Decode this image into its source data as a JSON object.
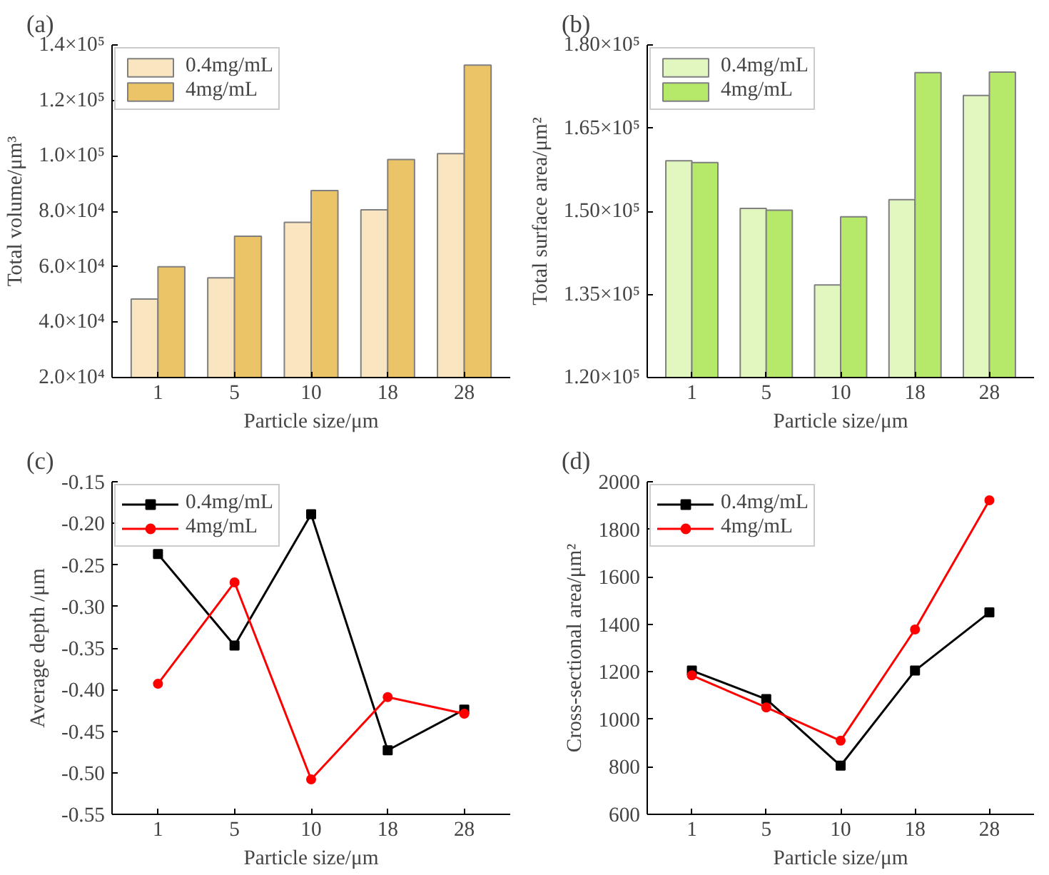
{
  "chart_data": [
    {
      "type": "bar",
      "title": "(a)",
      "xlabel": "Particle size/μm",
      "ylabel": "Total volume/μm³",
      "categories": [
        "1",
        "5",
        "10",
        "18",
        "28"
      ],
      "ylim": [
        20000,
        140000
      ],
      "yticks": [
        {
          "value": 20000,
          "label": "2.0×10⁴"
        },
        {
          "value": 40000,
          "label": "4.0×10⁴"
        },
        {
          "value": 60000,
          "label": "6.0×10⁴"
        },
        {
          "value": 80000,
          "label": "8.0×10⁴"
        },
        {
          "value": 100000,
          "label": "1.0×10⁵"
        },
        {
          "value": 120000,
          "label": "1.2×10⁵"
        },
        {
          "value": 140000,
          "label": "1.4×10⁵"
        }
      ],
      "legend": "top left",
      "grid": false,
      "series": [
        {
          "name": "0.4mg/mL",
          "color": "#f9e5bf",
          "values": [
            48300,
            56000,
            76000,
            80500,
            100800
          ]
        },
        {
          "name": "4mg/mL",
          "color": "#ebc468",
          "values": [
            60000,
            71000,
            87500,
            98700,
            132700
          ]
        }
      ]
    },
    {
      "type": "bar",
      "title": "(b)",
      "xlabel": "Particle size/μm",
      "ylabel": "Total surface area/μm²",
      "categories": [
        "1",
        "5",
        "10",
        "18",
        "28"
      ],
      "ylim": [
        120000,
        180000
      ],
      "yticks": [
        {
          "value": 120000,
          "label": "1.20×10⁵"
        },
        {
          "value": 135000,
          "label": "1.35×10⁵"
        },
        {
          "value": 150000,
          "label": "1.50×10⁵"
        },
        {
          "value": 165000,
          "label": "1.65×10⁵"
        },
        {
          "value": 180000,
          "label": "1.80×10⁵"
        }
      ],
      "legend": "top left",
      "grid": false,
      "series": [
        {
          "name": "0.4mg/mL",
          "color": "#e2f7c0",
          "values": [
            159100,
            150500,
            136700,
            152100,
            170900
          ]
        },
        {
          "name": "4mg/mL",
          "color": "#b6e86a",
          "values": [
            158800,
            150200,
            149000,
            175000,
            175100
          ]
        }
      ]
    },
    {
      "type": "line",
      "title": "(c)",
      "xlabel": "Particle size/μm",
      "ylabel": "Average depth /μm",
      "categories": [
        "1",
        "5",
        "10",
        "18",
        "28"
      ],
      "ylim": [
        -0.55,
        -0.15
      ],
      "yticks": [
        {
          "value": -0.55,
          "label": "-0.55"
        },
        {
          "value": -0.5,
          "label": "-0.50"
        },
        {
          "value": -0.45,
          "label": "-0.45"
        },
        {
          "value": -0.4,
          "label": "-0.40"
        },
        {
          "value": -0.35,
          "label": "-0.35"
        },
        {
          "value": -0.3,
          "label": "-0.30"
        },
        {
          "value": -0.25,
          "label": "-0.25"
        },
        {
          "value": -0.2,
          "label": "-0.20"
        },
        {
          "value": -0.15,
          "label": "-0.15"
        }
      ],
      "legend": "top left",
      "grid": false,
      "line_style": "solid",
      "series": [
        {
          "name": "0.4mg/mL",
          "color": "#000000",
          "marker": "square",
          "values": [
            -0.237,
            -0.347,
            -0.189,
            -0.473,
            -0.424
          ]
        },
        {
          "name": "4mg/mL",
          "color": "#ff0000",
          "marker": "circle",
          "values": [
            -0.393,
            -0.271,
            -0.508,
            -0.409,
            -0.429
          ]
        }
      ]
    },
    {
      "type": "line",
      "title": "(d)",
      "xlabel": "Particle size/μm",
      "ylabel": "Cross-sectional area/μm²",
      "categories": [
        "1",
        "5",
        "10",
        "18",
        "28"
      ],
      "ylim": [
        600,
        2000
      ],
      "yticks": [
        600,
        800,
        1000,
        1200,
        1400,
        1600,
        1800,
        2000
      ],
      "legend": "top left",
      "grid": false,
      "line_style": "solid",
      "series": [
        {
          "name": "0.4mg/mL",
          "color": "#000000",
          "marker": "square",
          "values": [
            1205,
            1085,
            805,
            1205,
            1450
          ]
        },
        {
          "name": "4mg/mL",
          "color": "#ff0000",
          "marker": "circle",
          "values": [
            1185,
            1050,
            910,
            1378,
            1922
          ]
        }
      ]
    }
  ]
}
